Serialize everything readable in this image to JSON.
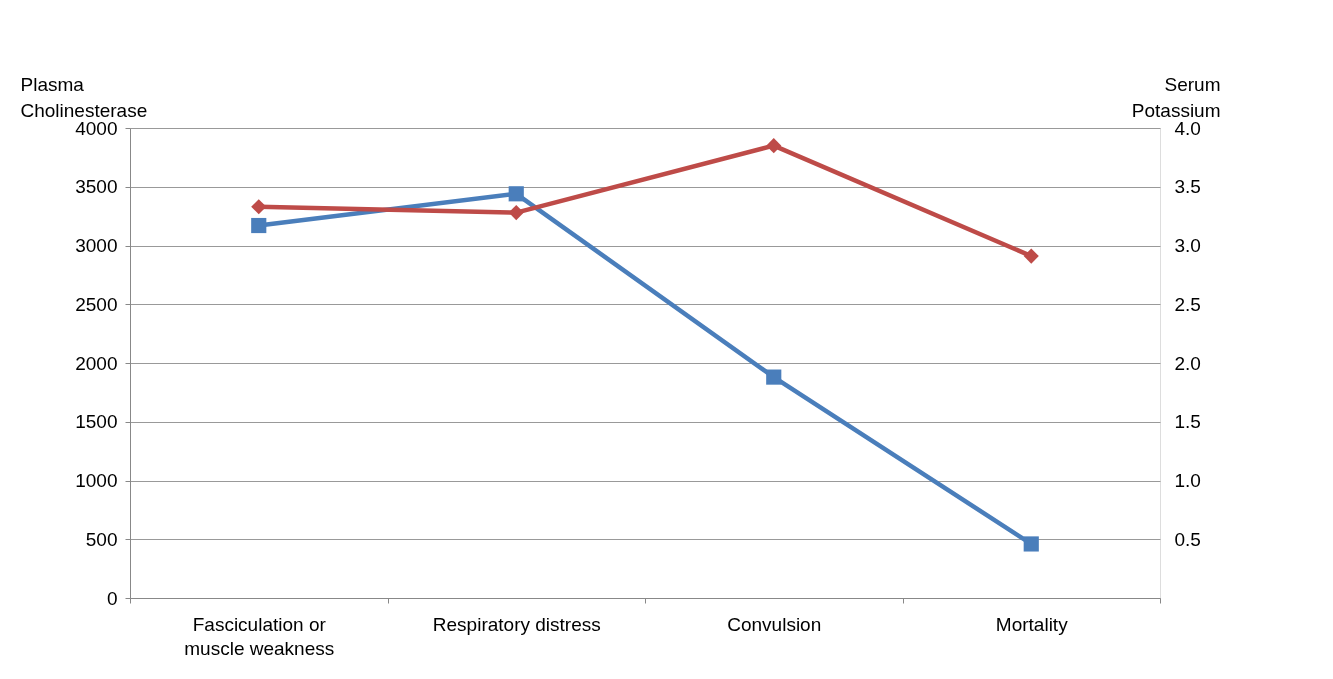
{
  "chart_data": {
    "type": "line",
    "categories": [
      "Fasciculation  or\nmuscle weakness",
      "Respiratory distress",
      "Convulsion",
      "Mortality"
    ],
    "ylabel": "Plasma\nCholinesterase",
    "y2label": "Serum\nPotassium",
    "ylim": [
      0,
      4000
    ],
    "yticks": [
      0,
      500,
      1000,
      1500,
      2000,
      2500,
      3000,
      3500,
      4000
    ],
    "y2lim": [
      0,
      4
    ],
    "y2ticks": [
      {
        "value": 0.5,
        "label": "0.5"
      },
      {
        "value": 1,
        "label": "1.0"
      },
      {
        "value": 1.5,
        "label": "1.5"
      },
      {
        "value": 2,
        "label": "2.0"
      },
      {
        "value": 2.5,
        "label": "2.5"
      },
      {
        "value": 3,
        "label": "3.0"
      },
      {
        "value": 3.5,
        "label": "3.5"
      },
      {
        "value": 4,
        "label": "4.0"
      }
    ],
    "grid": "y",
    "line_style": "solid",
    "series": [
      {
        "color": "#4a7ebb",
        "marker": "square",
        "values": [
          3170,
          3440,
          1880,
          460
        ]
      },
      {
        "color": "#be4b48",
        "marker": "diamond",
        "axis": "y2",
        "values": [
          3.33,
          3.28,
          3.85,
          2.91
        ]
      }
    ]
  }
}
